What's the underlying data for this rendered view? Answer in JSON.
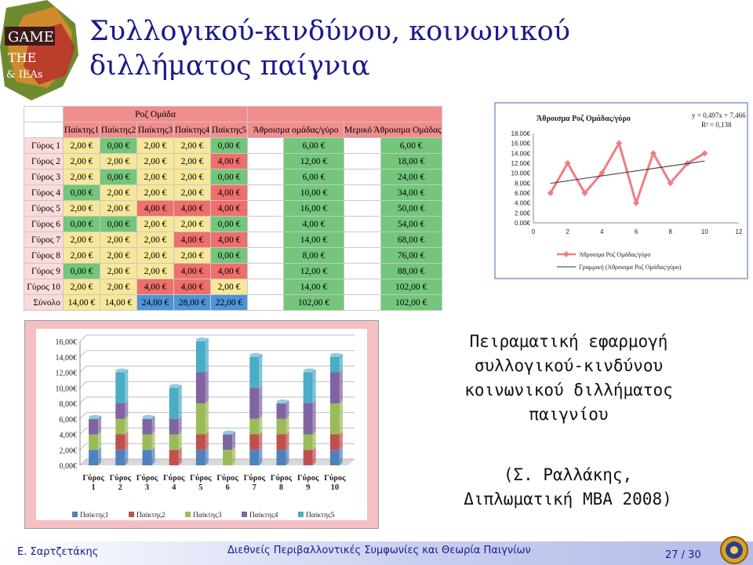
{
  "slide": {
    "title": "Συλλογικού-κινδύνου, κοινωνικού διλλήματος παίγνια",
    "caption": [
      "Πειραματική εφαρμογή",
      "συλλογικού-κινδύνου",
      "κοινωνικού διλλήματος",
      "παιγνίου"
    ],
    "caption_ref": [
      "(Σ. Ραλλάκης,",
      "Διπλωματική MBA 2008)"
    ],
    "footer_left": "Ε. Σαρτζετάκης",
    "footer_center": "Διεθνείς Περιβαλλοντικές Συμφωνίες και Θεωρία Παιγνίων",
    "footer_page": "27 / 30",
    "logo_text": [
      "GAME",
      "THE",
      "& IEAs"
    ]
  },
  "table": {
    "group_title": "Ροζ Ομάδα",
    "headers": [
      "Παίκτης1",
      "Παίκτης2",
      "Παίκτης3",
      "Παίκτης4",
      "Παίκτης5",
      "Άθροισμα ομάδας/γύρο",
      "Μερικό Άθροισμα Ομάδας"
    ],
    "rows": [
      {
        "label": "Γύρος 1",
        "cells": [
          "2,00 €",
          "0,00 €",
          "2,00 €",
          "2,00 €",
          "0,00 €"
        ],
        "colors": [
          "y",
          "g",
          "y",
          "y",
          "g"
        ],
        "sum": "6,00 €",
        "partial": "6,00 €"
      },
      {
        "label": "Γύρος 2",
        "cells": [
          "2,00 €",
          "2,00 €",
          "2,00 €",
          "2,00 €",
          "4,00 €"
        ],
        "colors": [
          "y",
          "y",
          "y",
          "y",
          "r"
        ],
        "sum": "12,00 €",
        "partial": "18,00 €"
      },
      {
        "label": "Γύρος 3",
        "cells": [
          "2,00 €",
          "0,00 €",
          "2,00 €",
          "2,00 €",
          "0,00 €"
        ],
        "colors": [
          "y",
          "g",
          "y",
          "y",
          "g"
        ],
        "sum": "6,00 €",
        "partial": "24,00 €"
      },
      {
        "label": "Γύρος 4",
        "cells": [
          "0,00 €",
          "2,00 €",
          "2,00 €",
          "2,00 €",
          "4,00 €"
        ],
        "colors": [
          "g",
          "y",
          "y",
          "y",
          "r"
        ],
        "sum": "10,00 €",
        "partial": "34,00 €"
      },
      {
        "label": "Γύρος 5",
        "cells": [
          "2,00 €",
          "2,00 €",
          "4,00 €",
          "4,00 €",
          "4,00 €"
        ],
        "colors": [
          "y",
          "y",
          "r",
          "r",
          "r"
        ],
        "sum": "16,00 €",
        "partial": "50,00 €"
      },
      {
        "label": "Γύρος 6",
        "cells": [
          "0,00 €",
          "0,00 €",
          "2,00 €",
          "2,00 €",
          "0,00 €"
        ],
        "colors": [
          "g",
          "g",
          "y",
          "y",
          "g"
        ],
        "sum": "4,00 €",
        "partial": "54,00 €"
      },
      {
        "label": "Γύρος 7",
        "cells": [
          "2,00 €",
          "2,00 €",
          "2,00 €",
          "4,00 €",
          "4,00 €"
        ],
        "colors": [
          "y",
          "y",
          "y",
          "r",
          "r"
        ],
        "sum": "14,00 €",
        "partial": "68,00 €"
      },
      {
        "label": "Γύρος 8",
        "cells": [
          "2,00 €",
          "2,00 €",
          "2,00 €",
          "2,00 €",
          "0,00 €"
        ],
        "colors": [
          "y",
          "y",
          "y",
          "y",
          "g"
        ],
        "sum": "8,00 €",
        "partial": "76,00 €"
      },
      {
        "label": "Γύρος 9",
        "cells": [
          "0,00 €",
          "2,00 €",
          "2,00 €",
          "4,00 €",
          "4,00 €"
        ],
        "colors": [
          "g",
          "y",
          "y",
          "r",
          "r"
        ],
        "sum": "12,00 €",
        "partial": "88,00 €"
      },
      {
        "label": "Γύρος 10",
        "cells": [
          "2,00 €",
          "2,00 €",
          "4,00 €",
          "4,00 €",
          "2,00 €"
        ],
        "colors": [
          "y",
          "y",
          "r",
          "r",
          "y"
        ],
        "sum": "14,00 €",
        "partial": "102,00 €"
      }
    ],
    "total": {
      "label": "Σύνολο",
      "cells": [
        "14,00 €",
        "14,00 €",
        "24,00 €",
        "28,00 €",
        "22,00 €"
      ],
      "colors": [
        "y",
        "y",
        "b",
        "b",
        "b"
      ],
      "sum": "102,00 €",
      "partial": "102,00 €"
    },
    "colors": {
      "y": "#f6e79a",
      "g": "#73c67a",
      "r": "#ef6f6a",
      "b": "#4d94d8"
    }
  },
  "chart_data": [
    {
      "type": "line",
      "title": "Άθροισμα Ροζ Ομάδας/γύρο",
      "equation": "y = 0,497x + 7,466",
      "r2": "R² = 0,138",
      "x": [
        1,
        2,
        3,
        4,
        5,
        6,
        7,
        8,
        9,
        10
      ],
      "series": [
        {
          "name": "Άθροισμα Ροζ Ομάδας/γύρο",
          "values": [
            6,
            12,
            6,
            10,
            16,
            4,
            14,
            8,
            12,
            14
          ],
          "color": "#f07d84"
        }
      ],
      "trendline": {
        "name": "Γραμμική (Άθροισμα Ροζ Ομάδας/γύρο)",
        "slope": 0.497,
        "intercept": 7.466,
        "color": "#333333"
      },
      "xlim": [
        0,
        12
      ],
      "ylim": [
        0,
        18
      ],
      "xticks": [
        "0",
        "2",
        "4",
        "6",
        "8",
        "10",
        "12"
      ],
      "yticks": [
        "0.00€",
        "2.00€",
        "4.00€",
        "6.00€",
        "8.00€",
        "10.00€",
        "12.00€",
        "14.00€",
        "16.00€",
        "18.00€"
      ],
      "legend": "bottom",
      "grid": false
    },
    {
      "type": "bar",
      "stacked": true,
      "categories": [
        [
          "Γύρος",
          "1"
        ],
        [
          "Γύρος",
          "2"
        ],
        [
          "Γύρος",
          "3"
        ],
        [
          "Γύρος",
          "4"
        ],
        [
          "Γύρος",
          "5"
        ],
        [
          "Γύρος",
          "6"
        ],
        [
          "Γύρος",
          "7"
        ],
        [
          "Γύρος",
          "8"
        ],
        [
          "Γύρος",
          "9"
        ],
        [
          "Γύρος",
          "10"
        ]
      ],
      "series": [
        {
          "name": "Παίκτης1",
          "values": [
            2,
            2,
            2,
            0,
            2,
            0,
            2,
            2,
            0,
            2
          ],
          "color": "#4f81bd"
        },
        {
          "name": "Παίκτης2",
          "values": [
            0,
            2,
            0,
            2,
            2,
            0,
            2,
            2,
            2,
            2
          ],
          "color": "#c0504d"
        },
        {
          "name": "Παίκτης3",
          "values": [
            2,
            2,
            2,
            2,
            4,
            2,
            2,
            2,
            2,
            4
          ],
          "color": "#9bbb59"
        },
        {
          "name": "Παίκτης4",
          "values": [
            2,
            2,
            2,
            2,
            4,
            2,
            4,
            2,
            4,
            4
          ],
          "color": "#8064a2"
        },
        {
          "name": "Παίκτης5",
          "values": [
            0,
            4,
            0,
            4,
            4,
            0,
            4,
            0,
            4,
            2
          ],
          "color": "#4bacc6"
        }
      ],
      "ylim": [
        0,
        16
      ],
      "yticks": [
        "0,00€",
        "2,00€",
        "4,00€",
        "6,00€",
        "8,00€",
        "10,00€",
        "12,00€",
        "14,00€",
        "16,00€"
      ],
      "legend": "bottom",
      "grid": true
    }
  ]
}
